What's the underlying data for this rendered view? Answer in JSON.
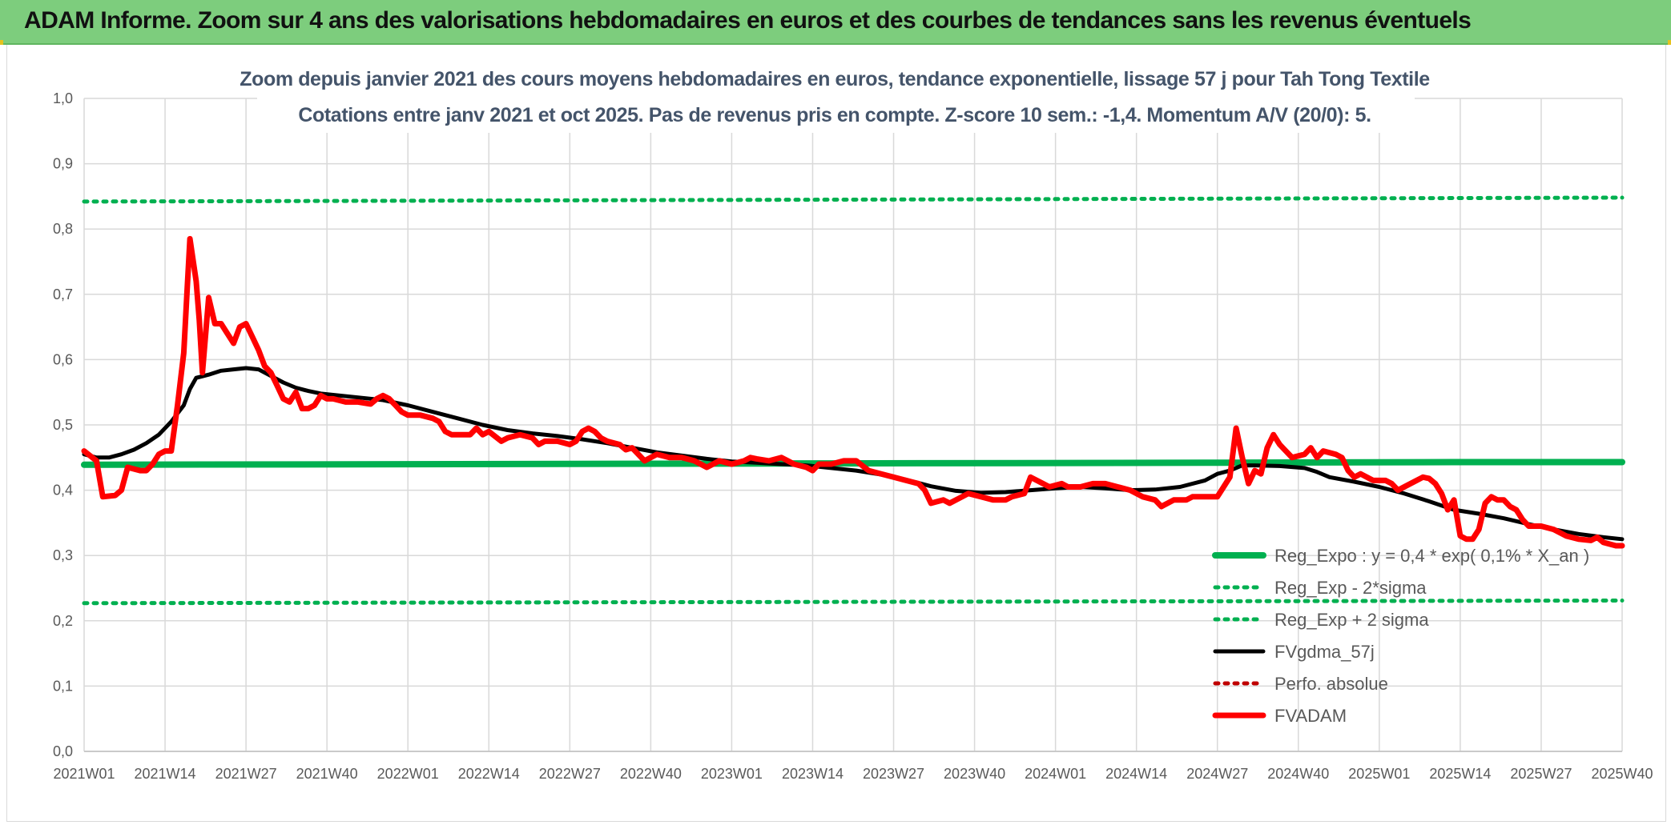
{
  "banner": {
    "title": "ADAM Informe. Zoom sur 4 ans des valorisations hebdomadaires en euros et des courbes de tendances sans les revenus éventuels"
  },
  "colors": {
    "banner_bg": "#7dcd7d",
    "green": "#00b050",
    "red": "#ff0000",
    "black": "#000000",
    "dark_red": "#c00000",
    "title_text": "#44546a",
    "axis_text": "#595959",
    "grid": "#d9d9d9"
  },
  "chart_data": {
    "type": "line",
    "title": "Zoom depuis janvier 2021 des cours moyens hebdomadaires en euros, tendance exponentielle, lissage 57 j pour Tah Tong Textile",
    "subtitle": "Cotations entre janv 2021 et oct 2025. Pas de revenus pris en compte. Z-score 10 sem.: -1,4. Momentum A/V (20/0): 5.",
    "xlabel": "",
    "ylabel": "",
    "ylim": [
      0,
      1
    ],
    "y_ticks": [
      "0,0",
      "0,1",
      "0,2",
      "0,3",
      "0,4",
      "0,5",
      "0,6",
      "0,7",
      "0,8",
      "0,9",
      "1,0"
    ],
    "x_ticks": [
      "2021W01",
      "2021W14",
      "2021W27",
      "2021W40",
      "2022W01",
      "2022W14",
      "2022W27",
      "2022W40",
      "2023W01",
      "2023W14",
      "2023W27",
      "2023W40",
      "2024W01",
      "2024W14",
      "2024W27",
      "2024W40",
      "2025W01",
      "2025W14",
      "2025W27",
      "2025W40"
    ],
    "x_range_weeks": [
      0,
      247
    ],
    "grid": true,
    "legend_position": "right",
    "series": [
      {
        "name": "Reg_Expo : y = 0,4 * exp( 0,1% *  X_an )",
        "style": "solid-thick",
        "color": "#00b050",
        "points": [
          [
            0,
            0.439
          ],
          [
            60,
            0.44
          ],
          [
            120,
            0.441
          ],
          [
            180,
            0.442
          ],
          [
            220,
            0.443
          ],
          [
            247,
            0.443
          ]
        ]
      },
      {
        "name": "Reg_Exp - 2*sigma",
        "style": "dotted",
        "color": "#00b050",
        "points": [
          [
            0,
            0.227
          ],
          [
            247,
            0.231
          ]
        ]
      },
      {
        "name": "Reg_Exp + 2 sigma",
        "style": "dotted",
        "color": "#00b050",
        "points": [
          [
            0,
            0.842
          ],
          [
            247,
            0.848
          ]
        ]
      },
      {
        "name": "FVgdma_57j",
        "style": "solid",
        "color": "#000000",
        "points": [
          [
            0,
            0.455
          ],
          [
            2,
            0.45
          ],
          [
            4,
            0.45
          ],
          [
            6,
            0.455
          ],
          [
            8,
            0.462
          ],
          [
            10,
            0.472
          ],
          [
            12,
            0.485
          ],
          [
            14,
            0.505
          ],
          [
            16,
            0.53
          ],
          [
            17,
            0.555
          ],
          [
            18,
            0.572
          ],
          [
            20,
            0.577
          ],
          [
            22,
            0.583
          ],
          [
            24,
            0.585
          ],
          [
            26,
            0.587
          ],
          [
            28,
            0.585
          ],
          [
            30,
            0.575
          ],
          [
            32,
            0.565
          ],
          [
            34,
            0.557
          ],
          [
            36,
            0.552
          ],
          [
            38,
            0.548
          ],
          [
            40,
            0.546
          ],
          [
            44,
            0.542
          ],
          [
            48,
            0.538
          ],
          [
            52,
            0.53
          ],
          [
            56,
            0.52
          ],
          [
            60,
            0.51
          ],
          [
            64,
            0.5
          ],
          [
            68,
            0.492
          ],
          [
            72,
            0.487
          ],
          [
            76,
            0.483
          ],
          [
            80,
            0.478
          ],
          [
            84,
            0.472
          ],
          [
            88,
            0.465
          ],
          [
            92,
            0.458
          ],
          [
            96,
            0.453
          ],
          [
            100,
            0.448
          ],
          [
            104,
            0.444
          ],
          [
            108,
            0.442
          ],
          [
            112,
            0.44
          ],
          [
            116,
            0.438
          ],
          [
            120,
            0.434
          ],
          [
            124,
            0.43
          ],
          [
            128,
            0.424
          ],
          [
            132,
            0.416
          ],
          [
            136,
            0.406
          ],
          [
            140,
            0.399
          ],
          [
            144,
            0.396
          ],
          [
            148,
            0.397
          ],
          [
            152,
            0.4
          ],
          [
            156,
            0.403
          ],
          [
            160,
            0.405
          ],
          [
            164,
            0.403
          ],
          [
            168,
            0.4
          ],
          [
            172,
            0.401
          ],
          [
            176,
            0.405
          ],
          [
            180,
            0.415
          ],
          [
            182,
            0.425
          ],
          [
            184,
            0.43
          ],
          [
            186,
            0.438
          ],
          [
            188,
            0.438
          ],
          [
            192,
            0.437
          ],
          [
            196,
            0.434
          ],
          [
            198,
            0.428
          ],
          [
            200,
            0.42
          ],
          [
            204,
            0.413
          ],
          [
            208,
            0.405
          ],
          [
            212,
            0.395
          ],
          [
            216,
            0.383
          ],
          [
            220,
            0.37
          ],
          [
            224,
            0.364
          ],
          [
            228,
            0.357
          ],
          [
            232,
            0.348
          ],
          [
            236,
            0.34
          ],
          [
            240,
            0.333
          ],
          [
            244,
            0.328
          ],
          [
            247,
            0.325
          ]
        ]
      },
      {
        "name": "Perfo. absolue",
        "style": "dotted",
        "color": "#c00000",
        "points": []
      },
      {
        "name": "FVADAM",
        "style": "solid-thick",
        "color": "#ff0000",
        "points": [
          [
            0,
            0.46
          ],
          [
            2,
            0.445
          ],
          [
            3,
            0.39
          ],
          [
            5,
            0.392
          ],
          [
            6,
            0.4
          ],
          [
            7,
            0.435
          ],
          [
            9,
            0.43
          ],
          [
            10,
            0.43
          ],
          [
            11,
            0.44
          ],
          [
            12,
            0.455
          ],
          [
            13,
            0.46
          ],
          [
            14,
            0.46
          ],
          [
            15,
            0.53
          ],
          [
            16,
            0.61
          ],
          [
            16.5,
            0.7
          ],
          [
            17,
            0.785
          ],
          [
            18,
            0.72
          ],
          [
            18.5,
            0.66
          ],
          [
            19,
            0.58
          ],
          [
            20,
            0.695
          ],
          [
            21,
            0.655
          ],
          [
            22,
            0.655
          ],
          [
            23,
            0.64
          ],
          [
            24,
            0.625
          ],
          [
            25,
            0.65
          ],
          [
            26,
            0.655
          ],
          [
            27,
            0.635
          ],
          [
            28,
            0.615
          ],
          [
            29,
            0.59
          ],
          [
            30,
            0.58
          ],
          [
            31,
            0.56
          ],
          [
            32,
            0.54
          ],
          [
            33,
            0.535
          ],
          [
            34,
            0.55
          ],
          [
            35,
            0.525
          ],
          [
            36,
            0.525
          ],
          [
            37,
            0.53
          ],
          [
            38,
            0.545
          ],
          [
            39,
            0.54
          ],
          [
            40,
            0.54
          ],
          [
            42,
            0.535
          ],
          [
            44,
            0.535
          ],
          [
            46,
            0.532
          ],
          [
            47,
            0.54
          ],
          [
            48,
            0.545
          ],
          [
            49,
            0.54
          ],
          [
            50,
            0.53
          ],
          [
            51,
            0.52
          ],
          [
            52,
            0.515
          ],
          [
            54,
            0.515
          ],
          [
            56,
            0.51
          ],
          [
            57,
            0.505
          ],
          [
            58,
            0.49
          ],
          [
            59,
            0.485
          ],
          [
            60,
            0.485
          ],
          [
            62,
            0.485
          ],
          [
            63,
            0.495
          ],
          [
            64,
            0.485
          ],
          [
            65,
            0.49
          ],
          [
            67,
            0.475
          ],
          [
            68,
            0.48
          ],
          [
            70,
            0.485
          ],
          [
            72,
            0.48
          ],
          [
            73,
            0.47
          ],
          [
            74,
            0.475
          ],
          [
            76,
            0.475
          ],
          [
            78,
            0.47
          ],
          [
            79,
            0.475
          ],
          [
            80,
            0.49
          ],
          [
            81,
            0.495
          ],
          [
            82,
            0.49
          ],
          [
            83,
            0.48
          ],
          [
            84,
            0.475
          ],
          [
            86,
            0.47
          ],
          [
            87,
            0.462
          ],
          [
            88,
            0.465
          ],
          [
            89,
            0.455
          ],
          [
            90,
            0.445
          ],
          [
            92,
            0.455
          ],
          [
            94,
            0.45
          ],
          [
            96,
            0.45
          ],
          [
            98,
            0.445
          ],
          [
            100,
            0.435
          ],
          [
            101,
            0.44
          ],
          [
            102,
            0.445
          ],
          [
            104,
            0.44
          ],
          [
            106,
            0.445
          ],
          [
            107,
            0.45
          ],
          [
            108,
            0.448
          ],
          [
            110,
            0.445
          ],
          [
            112,
            0.45
          ],
          [
            113,
            0.445
          ],
          [
            114,
            0.44
          ],
          [
            116,
            0.435
          ],
          [
            117,
            0.43
          ],
          [
            118,
            0.44
          ],
          [
            120,
            0.44
          ],
          [
            122,
            0.445
          ],
          [
            124,
            0.445
          ],
          [
            126,
            0.43
          ],
          [
            128,
            0.425
          ],
          [
            130,
            0.42
          ],
          [
            132,
            0.415
          ],
          [
            134,
            0.41
          ],
          [
            135,
            0.4
          ],
          [
            136,
            0.38
          ],
          [
            138,
            0.385
          ],
          [
            139,
            0.38
          ],
          [
            141,
            0.39
          ],
          [
            142,
            0.395
          ],
          [
            144,
            0.39
          ],
          [
            146,
            0.385
          ],
          [
            148,
            0.385
          ],
          [
            149,
            0.39
          ],
          [
            151,
            0.395
          ],
          [
            152,
            0.42
          ],
          [
            154,
            0.41
          ],
          [
            155,
            0.405
          ],
          [
            157,
            0.41
          ],
          [
            158,
            0.405
          ],
          [
            160,
            0.405
          ],
          [
            162,
            0.41
          ],
          [
            164,
            0.41
          ],
          [
            166,
            0.405
          ],
          [
            168,
            0.4
          ],
          [
            170,
            0.39
          ],
          [
            172,
            0.385
          ],
          [
            173,
            0.375
          ],
          [
            175,
            0.385
          ],
          [
            177,
            0.385
          ],
          [
            178,
            0.39
          ],
          [
            180,
            0.39
          ],
          [
            182,
            0.39
          ],
          [
            184,
            0.42
          ],
          [
            185,
            0.495
          ],
          [
            186,
            0.45
          ],
          [
            187,
            0.41
          ],
          [
            188,
            0.43
          ],
          [
            189,
            0.425
          ],
          [
            190,
            0.465
          ],
          [
            191,
            0.485
          ],
          [
            192,
            0.47
          ],
          [
            193,
            0.46
          ],
          [
            194,
            0.45
          ],
          [
            196,
            0.455
          ],
          [
            197,
            0.465
          ],
          [
            198,
            0.45
          ],
          [
            199,
            0.46
          ],
          [
            201,
            0.455
          ],
          [
            202,
            0.45
          ],
          [
            203,
            0.43
          ],
          [
            204,
            0.42
          ],
          [
            205,
            0.425
          ],
          [
            207,
            0.415
          ],
          [
            209,
            0.415
          ],
          [
            210,
            0.41
          ],
          [
            211,
            0.4
          ],
          [
            212,
            0.405
          ],
          [
            214,
            0.415
          ],
          [
            215,
            0.42
          ],
          [
            216,
            0.418
          ],
          [
            217,
            0.41
          ],
          [
            218,
            0.395
          ],
          [
            219,
            0.37
          ],
          [
            220,
            0.385
          ],
          [
            221,
            0.33
          ],
          [
            222,
            0.325
          ],
          [
            223,
            0.325
          ],
          [
            224,
            0.34
          ],
          [
            225,
            0.38
          ],
          [
            226,
            0.39
          ],
          [
            227,
            0.385
          ],
          [
            228,
            0.385
          ],
          [
            229,
            0.375
          ],
          [
            230,
            0.37
          ],
          [
            231,
            0.355
          ],
          [
            232,
            0.345
          ],
          [
            234,
            0.345
          ],
          [
            236,
            0.34
          ],
          [
            238,
            0.33
          ],
          [
            240,
            0.325
          ],
          [
            242,
            0.323
          ],
          [
            243,
            0.328
          ],
          [
            244,
            0.32
          ],
          [
            246,
            0.315
          ],
          [
            247,
            0.315
          ]
        ]
      }
    ]
  }
}
